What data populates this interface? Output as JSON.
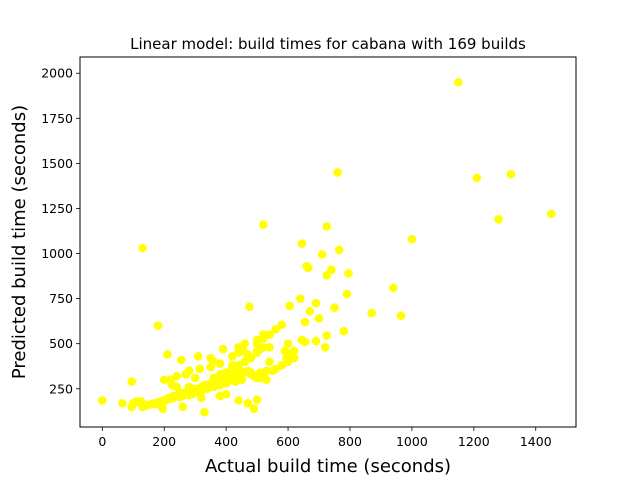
{
  "chart_data": {
    "type": "scatter",
    "title": "Linear model: build times for cabana with 169 builds",
    "xlabel": "Actual build time (seconds)",
    "ylabel": "Predicted build time (seconds)",
    "xlim": [
      -72,
      1530
    ],
    "ylim": [
      38,
      2090
    ],
    "xticks": [
      0,
      200,
      400,
      600,
      800,
      1000,
      1200,
      1400
    ],
    "yticks": [
      250,
      500,
      750,
      1000,
      1250,
      1500,
      1750,
      2000
    ],
    "grid": false,
    "legend": "none",
    "marker_color": "#ffff00",
    "series": [
      {
        "x": [
          1150,
          1210,
          1320,
          1280,
          1450,
          760,
          520,
          725,
          645,
          765,
          710,
          1000,
          130,
          660,
          665,
          740,
          795,
          725,
          940,
          640,
          790,
          690,
          750,
          870,
          965,
          180,
          475,
          605,
          700,
          670,
          655,
          580,
          655,
          780,
          725,
          645,
          690,
          600,
          720,
          620,
          540,
          500,
          510,
          590,
          600,
          620,
          500,
          470,
          520,
          540,
          460,
          500,
          440,
          440,
          420,
          350,
          360,
          380,
          350,
          315,
          280,
          460,
          490,
          510,
          530,
          550,
          540,
          420,
          440,
          480,
          520,
          500,
          450,
          430,
          400,
          380,
          360,
          340,
          320,
          300,
          290,
          280,
          260,
          250,
          230,
          220,
          210,
          200,
          190,
          180,
          170,
          160,
          150,
          140,
          130,
          120,
          110,
          100,
          95,
          0,
          65,
          95,
          125,
          145,
          180,
          200,
          215,
          230,
          250,
          270,
          300,
          330,
          360,
          390,
          420,
          450,
          480,
          510,
          530,
          560,
          580,
          600,
          210,
          255,
          310,
          220,
          300,
          240,
          195,
          260,
          320,
          270,
          240,
          380,
          360,
          410,
          330,
          490,
          500,
          440,
          400,
          470,
          380,
          350,
          300,
          320,
          340,
          360,
          380,
          400,
          420,
          440,
          460,
          480,
          500,
          520,
          280,
          290,
          200,
          225,
          250,
          470,
          360,
          390,
          430,
          455,
          520,
          560,
          595
        ],
        "y": [
          1950,
          1420,
          1440,
          1190,
          1220,
          1450,
          1160,
          1150,
          1055,
          1020,
          995,
          1080,
          1030,
          930,
          920,
          910,
          890,
          880,
          810,
          750,
          775,
          725,
          700,
          670,
          655,
          600,
          705,
          710,
          640,
          680,
          510,
          605,
          620,
          570,
          545,
          520,
          515,
          500,
          480,
          460,
          480,
          500,
          470,
          460,
          440,
          420,
          460,
          440,
          530,
          550,
          500,
          520,
          480,
          450,
          430,
          420,
          400,
          390,
          370,
          360,
          350,
          340,
          320,
          310,
          300,
          350,
          400,
          380,
          360,
          340,
          320,
          310,
          300,
          290,
          280,
          270,
          260,
          250,
          240,
          230,
          220,
          215,
          210,
          205,
          200,
          195,
          190,
          185,
          180,
          175,
          170,
          165,
          160,
          155,
          150,
          175,
          180,
          170,
          290,
          185,
          170,
          150,
          180,
          160,
          165,
          180,
          200,
          210,
          220,
          230,
          250,
          270,
          290,
          300,
          310,
          320,
          330,
          340,
          350,
          360,
          380,
          400,
          440,
          410,
          430,
          300,
          310,
          320,
          140,
          150,
          200,
          330,
          260,
          330,
          300,
          300,
          120,
          140,
          190,
          185,
          220,
          170,
          210,
          280,
          240,
          260,
          270,
          290,
          320,
          340,
          360,
          380,
          400,
          420,
          450,
          480,
          260,
          250,
          300,
          270,
          230,
          350,
          310,
          470,
          320,
          460,
          550,
          580,
          420
        ]
      }
    ]
  }
}
